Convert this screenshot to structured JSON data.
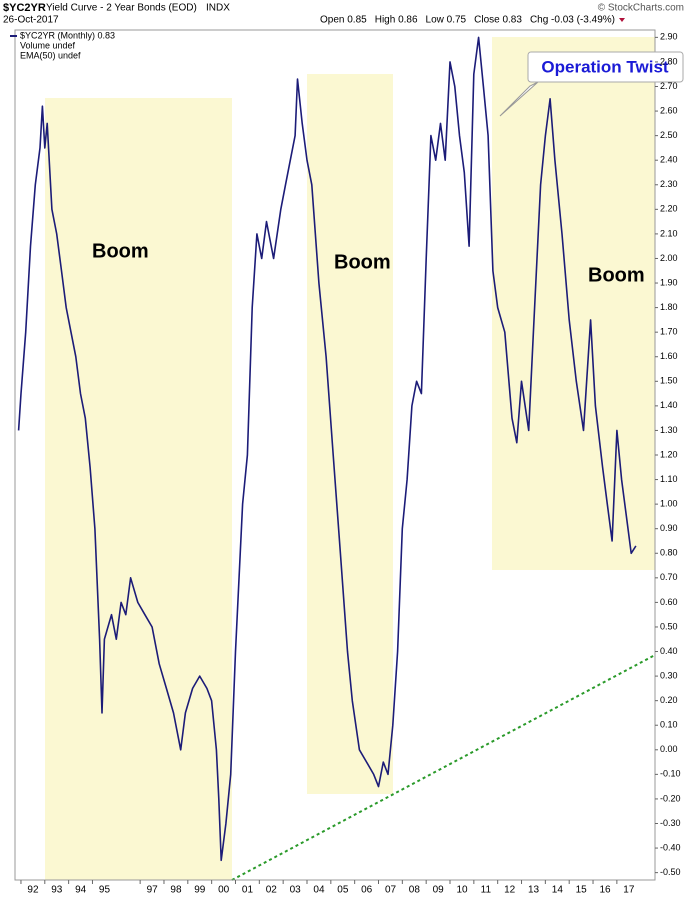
{
  "chart_data": {
    "type": "line",
    "title": "$YC2YR",
    "subtitle": "Yield Curve - 2 Year Bonds (EOD)",
    "exchange": "INDX",
    "date": "26-Oct-2017",
    "quote": [
      "Open 0.85",
      "High 0.86",
      "Low 0.75",
      "Close 0.83",
      "Chg -0.03 (-3.49%)"
    ],
    "credit": "© StockCharts.com",
    "legend_extra": [
      "Volume undef",
      "EMA(50) undef"
    ],
    "annotations": [
      "Boom",
      "Boom",
      "Boom",
      "Operation Twist"
    ],
    "x": [
      1991.9,
      1992.0,
      1992.2,
      1992.4,
      1992.6,
      1992.8,
      1992.9,
      1993.0,
      1993.1,
      1993.3,
      1993.5,
      1993.7,
      1993.9,
      1994.1,
      1994.3,
      1994.5,
      1994.7,
      1994.9,
      1995.1,
      1995.3,
      1995.4,
      1995.5,
      1995.8,
      1996.0,
      1996.2,
      1996.4,
      1996.6,
      1996.9,
      1997.2,
      1997.5,
      1997.8,
      1998.1,
      1998.4,
      1998.7,
      1998.9,
      1999.2,
      1999.5,
      1999.8,
      2000.0,
      2000.2,
      2000.3,
      2000.4,
      2000.6,
      2000.8,
      2001.0,
      2001.3,
      2001.5,
      2001.7,
      2001.9,
      2002.1,
      2002.3,
      2002.6,
      2002.9,
      2003.1,
      2003.3,
      2003.5,
      2003.6,
      2003.8,
      2004.0,
      2004.2,
      2004.5,
      2004.8,
      2005.1,
      2005.4,
      2005.7,
      2005.9,
      2006.2,
      2006.5,
      2006.8,
      2007.0,
      2007.2,
      2007.4,
      2007.6,
      2007.8,
      2008.0,
      2008.2,
      2008.4,
      2008.6,
      2008.8,
      2009.0,
      2009.2,
      2009.4,
      2009.6,
      2009.8,
      2010.0,
      2010.2,
      2010.4,
      2010.6,
      2010.8,
      2011.0,
      2011.2,
      2011.4,
      2011.6,
      2011.8,
      2012.0,
      2012.3,
      2012.6,
      2012.8,
      2013.0,
      2013.3,
      2013.5,
      2013.8,
      2014.0,
      2014.2,
      2014.4,
      2014.7,
      2015.0,
      2015.3,
      2015.6,
      2015.9,
      2016.1,
      2016.4,
      2016.6,
      2016.8,
      2017.0,
      2017.2,
      2017.4,
      2017.6,
      2017.8
    ],
    "series": [
      {
        "name": "$YC2YR (Monthly) 0.83",
        "color": "#1c1c78",
        "values": [
          1.3,
          1.45,
          1.7,
          2.05,
          2.3,
          2.45,
          2.62,
          2.45,
          2.55,
          2.2,
          2.1,
          1.95,
          1.8,
          1.7,
          1.6,
          1.45,
          1.35,
          1.15,
          0.9,
          0.45,
          0.15,
          0.45,
          0.55,
          0.45,
          0.6,
          0.55,
          0.7,
          0.6,
          0.55,
          0.5,
          0.35,
          0.25,
          0.15,
          0.0,
          0.15,
          0.25,
          0.3,
          0.25,
          0.2,
          0.0,
          -0.2,
          -0.45,
          -0.3,
          -0.1,
          0.4,
          1.0,
          1.2,
          1.8,
          2.1,
          2.0,
          2.15,
          2.0,
          2.2,
          2.3,
          2.4,
          2.5,
          2.73,
          2.55,
          2.4,
          2.3,
          1.9,
          1.6,
          1.2,
          0.8,
          0.4,
          0.2,
          0.0,
          -0.05,
          -0.1,
          -0.15,
          -0.05,
          -0.1,
          0.1,
          0.4,
          0.9,
          1.1,
          1.4,
          1.5,
          1.45,
          2.0,
          2.5,
          2.4,
          2.55,
          2.4,
          2.8,
          2.7,
          2.5,
          2.35,
          2.05,
          2.75,
          2.9,
          2.7,
          2.5,
          1.95,
          1.8,
          1.7,
          1.35,
          1.25,
          1.5,
          1.3,
          1.7,
          2.3,
          2.5,
          2.65,
          2.4,
          2.1,
          1.75,
          1.5,
          1.3,
          1.75,
          1.4,
          1.15,
          1.0,
          0.85,
          1.3,
          1.1,
          0.95,
          0.8,
          0.83
        ]
      }
    ],
    "xlim": [
      1991.75,
      2018.6
    ],
    "xticks": [
      {
        "value": 1992,
        "label": "92"
      },
      {
        "value": 1993,
        "label": "93"
      },
      {
        "value": 1994,
        "label": "94"
      },
      {
        "value": 1995,
        "label": "95"
      },
      {
        "value": 1997,
        "label": "97"
      },
      {
        "value": 1998,
        "label": "98"
      },
      {
        "value": 1999,
        "label": "99"
      },
      {
        "value": 2000,
        "label": "00"
      },
      {
        "value": 2001,
        "label": "01"
      },
      {
        "value": 2002,
        "label": "02"
      },
      {
        "value": 2003,
        "label": "03"
      },
      {
        "value": 2004,
        "label": "04"
      },
      {
        "value": 2005,
        "label": "05"
      },
      {
        "value": 2006,
        "label": "06"
      },
      {
        "value": 2007,
        "label": "07"
      },
      {
        "value": 2008,
        "label": "08"
      },
      {
        "value": 2009,
        "label": "09"
      },
      {
        "value": 2010,
        "label": "10"
      },
      {
        "value": 2011,
        "label": "11"
      },
      {
        "value": 2012,
        "label": "12"
      },
      {
        "value": 2013,
        "label": "13"
      },
      {
        "value": 2014,
        "label": "14"
      },
      {
        "value": 2015,
        "label": "15"
      },
      {
        "value": 2016,
        "label": "16"
      },
      {
        "value": 2017,
        "label": "17"
      }
    ],
    "ylim": [
      -0.53,
      2.93
    ],
    "yticks": [
      {
        "value": 2.9,
        "label": "2.90"
      },
      {
        "value": 2.8,
        "label": "2.80"
      },
      {
        "value": 2.7,
        "label": "2.70"
      },
      {
        "value": 2.6,
        "label": "2.60"
      },
      {
        "value": 2.5,
        "label": "2.50"
      },
      {
        "value": 2.4,
        "label": "2.40"
      },
      {
        "value": 2.3,
        "label": "2.30"
      },
      {
        "value": 2.2,
        "label": "2.20"
      },
      {
        "value": 2.1,
        "label": "2.10"
      },
      {
        "value": 2.0,
        "label": "2.00"
      },
      {
        "value": 1.9,
        "label": "1.90"
      },
      {
        "value": 1.8,
        "label": "1.80"
      },
      {
        "value": 1.7,
        "label": "1.70"
      },
      {
        "value": 1.6,
        "label": "1.60"
      },
      {
        "value": 1.5,
        "label": "1.50"
      },
      {
        "value": 1.4,
        "label": "1.40"
      },
      {
        "value": 1.3,
        "label": "1.30"
      },
      {
        "value": 1.2,
        "label": "1.20"
      },
      {
        "value": 1.1,
        "label": "1.10"
      },
      {
        "value": 1.0,
        "label": "1.00"
      },
      {
        "value": 0.9,
        "label": "0.90"
      },
      {
        "value": 0.8,
        "label": "0.80"
      },
      {
        "value": 0.7,
        "label": "0.70"
      },
      {
        "value": 0.6,
        "label": "0.60"
      },
      {
        "value": 0.5,
        "label": "0.50"
      },
      {
        "value": 0.4,
        "label": "0.40"
      },
      {
        "value": 0.3,
        "label": "0.30"
      },
      {
        "value": 0.2,
        "label": "0.20"
      },
      {
        "value": 0.1,
        "label": "0.10"
      },
      {
        "value": 0.0,
        "label": "0.00"
      },
      {
        "value": -0.1,
        "label": "-0.10"
      },
      {
        "value": -0.2,
        "label": "-0.20"
      },
      {
        "value": -0.3,
        "label": "-0.30"
      },
      {
        "value": -0.4,
        "label": "-0.40"
      },
      {
        "value": -0.5,
        "label": "-0.50"
      }
    ]
  }
}
